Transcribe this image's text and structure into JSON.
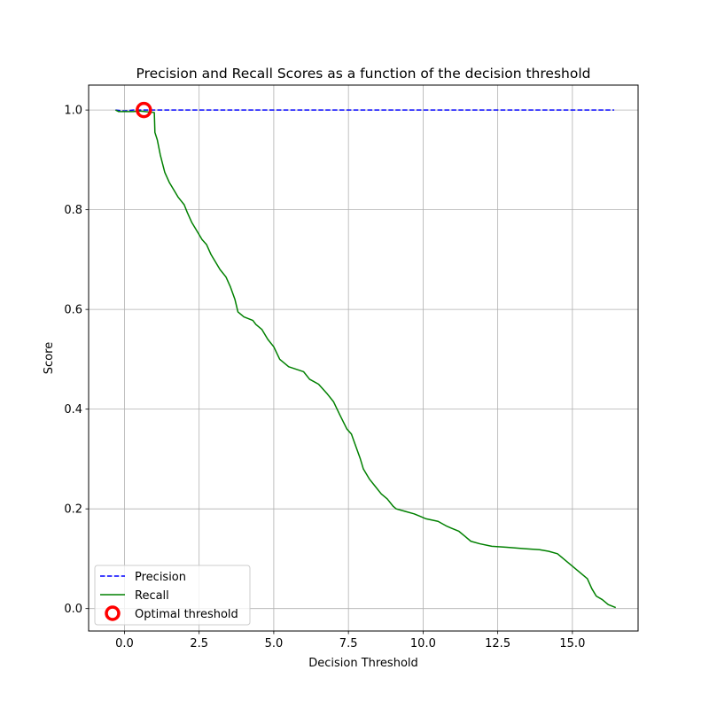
{
  "chart_data": {
    "type": "line",
    "title": "Precision and Recall Scores as a function of the decision threshold",
    "xlabel": "Decision Threshold",
    "ylabel": "Score",
    "xlim": [
      -1.2,
      17.2
    ],
    "ylim": [
      -0.045,
      1.05
    ],
    "xticks": [
      0.0,
      2.5,
      5.0,
      7.5,
      10.0,
      12.5,
      15.0
    ],
    "xtick_labels": [
      "0.0",
      "2.5",
      "5.0",
      "7.5",
      "10.0",
      "12.5",
      "15.0"
    ],
    "yticks": [
      0.0,
      0.2,
      0.4,
      0.6,
      0.8,
      1.0
    ],
    "ytick_labels": [
      "0.0",
      "0.2",
      "0.4",
      "0.6",
      "0.8",
      "1.0"
    ],
    "grid": true,
    "legend_position": "lower-left",
    "series": [
      {
        "name": "Precision",
        "style": "dashed",
        "color": "#0000ff",
        "x": [
          -0.3,
          0.0,
          0.3,
          0.5,
          16.4
        ],
        "y": [
          1.0,
          0.998,
          1.0,
          1.0,
          1.0
        ]
      },
      {
        "name": "Recall",
        "style": "solid",
        "color": "#008000",
        "x": [
          -0.3,
          -0.2,
          0.3,
          0.5,
          1.0,
          1.02,
          1.1,
          1.2,
          1.35,
          1.5,
          1.65,
          1.8,
          2.0,
          2.1,
          2.25,
          2.4,
          2.6,
          2.75,
          2.9,
          3.0,
          3.2,
          3.4,
          3.55,
          3.7,
          3.8,
          4.0,
          4.3,
          4.4,
          4.6,
          4.8,
          5.0,
          5.2,
          5.5,
          6.0,
          6.2,
          6.5,
          6.8,
          7.0,
          7.2,
          7.45,
          7.6,
          7.75,
          7.9,
          8.0,
          8.2,
          8.4,
          8.6,
          8.8,
          9.0,
          9.1,
          9.4,
          9.7,
          9.9,
          10.1,
          10.5,
          10.8,
          11.2,
          11.4,
          11.6,
          11.9,
          12.3,
          12.8,
          13.4,
          13.9,
          14.2,
          14.5,
          14.7,
          14.9,
          15.1,
          15.3,
          15.5,
          15.65,
          15.8,
          16.0,
          16.2,
          16.45
        ],
        "y": [
          1.0,
          0.997,
          0.997,
          0.998,
          0.995,
          0.955,
          0.94,
          0.91,
          0.875,
          0.855,
          0.84,
          0.825,
          0.81,
          0.795,
          0.775,
          0.76,
          0.74,
          0.73,
          0.71,
          0.7,
          0.68,
          0.665,
          0.645,
          0.62,
          0.595,
          0.585,
          0.578,
          0.57,
          0.56,
          0.54,
          0.525,
          0.5,
          0.485,
          0.475,
          0.46,
          0.45,
          0.43,
          0.415,
          0.39,
          0.36,
          0.35,
          0.325,
          0.3,
          0.28,
          0.26,
          0.245,
          0.23,
          0.22,
          0.205,
          0.2,
          0.195,
          0.19,
          0.185,
          0.18,
          0.175,
          0.165,
          0.155,
          0.145,
          0.135,
          0.13,
          0.125,
          0.123,
          0.12,
          0.118,
          0.115,
          0.11,
          0.1,
          0.09,
          0.08,
          0.07,
          0.06,
          0.04,
          0.025,
          0.018,
          0.008,
          0.002
        ]
      },
      {
        "name": "Optimal threshold",
        "style": "marker",
        "color": "#ff0000",
        "x": [
          0.65
        ],
        "y": [
          1.0
        ]
      }
    ]
  }
}
